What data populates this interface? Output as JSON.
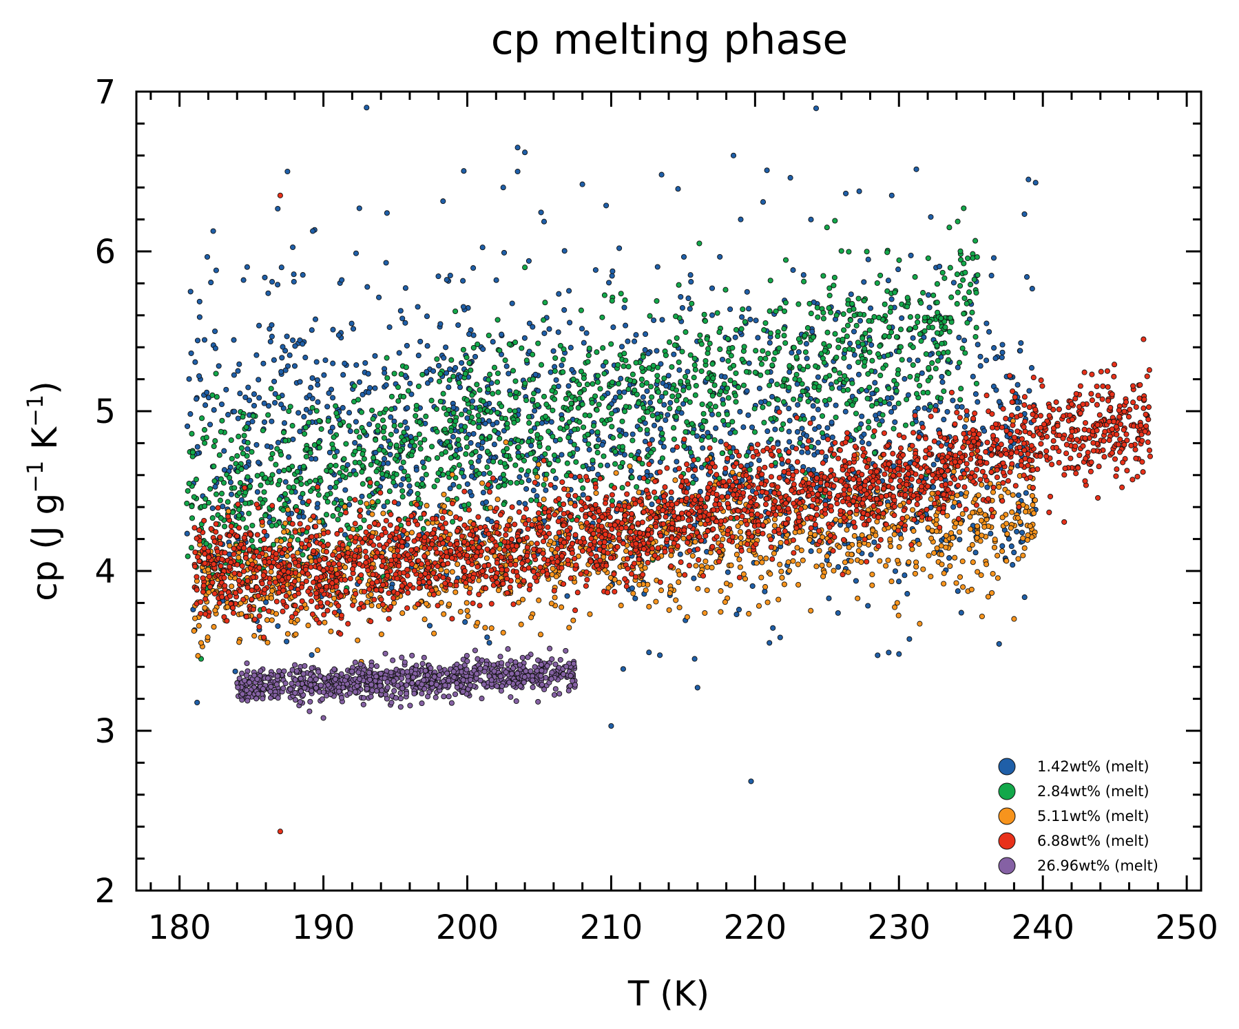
{
  "chart_data": {
    "type": "scatter",
    "title": "cp melting phase",
    "xlabel": "T (K)",
    "ylabel": {
      "base": "cp (J g",
      "sup1": "−1",
      "mid": " K",
      "sup2": "−1",
      "end": ")"
    },
    "xlim": [
      177,
      251
    ],
    "ylim": [
      2,
      7
    ],
    "xticks": [
      180,
      190,
      200,
      210,
      220,
      230,
      240,
      250
    ],
    "yticks": [
      2,
      3,
      4,
      5,
      6,
      7
    ],
    "grid": false,
    "legend_position": "lower-right",
    "series": [
      {
        "name": "1.42wt% (melt)",
        "color": "#1f5fa8",
        "x_range": [
          180.5,
          239.5
        ],
        "trend": [
          [
            180.5,
            4.85
          ],
          [
            190,
            4.85
          ],
          [
            200,
            4.9
          ],
          [
            210,
            4.85
          ],
          [
            220,
            4.8
          ],
          [
            230,
            4.85
          ],
          [
            239.5,
            4.85
          ]
        ],
        "spread": 0.55,
        "count": 1500,
        "outliers": [
          [
            193.0,
            6.9
          ],
          [
            187.5,
            6.5
          ],
          [
            192.5,
            6.27
          ],
          [
            203.5,
            6.65
          ],
          [
            204.0,
            6.62
          ],
          [
            203.5,
            6.5
          ],
          [
            202.5,
            6.4
          ],
          [
            208.0,
            6.42
          ],
          [
            213.5,
            6.48
          ],
          [
            218.5,
            6.6
          ],
          [
            219.0,
            6.2
          ],
          [
            229.5,
            6.35
          ],
          [
            239.0,
            6.45
          ],
          [
            239.5,
            6.43
          ],
          [
            210.0,
            3.03
          ],
          [
            216.0,
            3.27
          ],
          [
            215.8,
            3.45
          ],
          [
            230.0,
            3.48
          ],
          [
            221.0,
            3.55
          ]
        ]
      },
      {
        "name": "2.84wt% (melt)",
        "color": "#13a84a",
        "x_range": [
          180.5,
          235.5
        ],
        "trend": [
          [
            180.5,
            4.4
          ],
          [
            190,
            4.6
          ],
          [
            200,
            4.85
          ],
          [
            210,
            5.0
          ],
          [
            220,
            5.2
          ],
          [
            230,
            5.45
          ],
          [
            235.5,
            5.65
          ]
        ],
        "spread": 0.28,
        "count": 1500,
        "outliers": [
          [
            225.0,
            6.15
          ],
          [
            233.5,
            6.15
          ],
          [
            234.5,
            6.27
          ],
          [
            181.5,
            3.45
          ],
          [
            204.0,
            5.9
          ]
        ]
      },
      {
        "name": "5.11wt% (melt)",
        "color": "#f7941d",
        "x_range": [
          181,
          239.5
        ],
        "trend": [
          [
            181,
            3.9
          ],
          [
            190,
            4.0
          ],
          [
            200,
            4.05
          ],
          [
            210,
            4.1
          ],
          [
            220,
            4.2
          ],
          [
            230,
            4.3
          ],
          [
            239.5,
            4.3
          ]
        ],
        "spread": 0.2,
        "count": 1200,
        "outliers": [
          [
            181.5,
            3.55
          ],
          [
            238.0,
            3.7
          ]
        ]
      },
      {
        "name": "6.88wt% (melt)",
        "color": "#e8311a",
        "x_range": [
          181,
          247.5
        ],
        "trend": [
          [
            181,
            4.0
          ],
          [
            190,
            4.0
          ],
          [
            200,
            4.1
          ],
          [
            210,
            4.25
          ],
          [
            220,
            4.45
          ],
          [
            230,
            4.55
          ],
          [
            240,
            4.85
          ],
          [
            247.5,
            4.9
          ]
        ],
        "spread": 0.16,
        "count": 2600,
        "outliers": [
          [
            187.0,
            6.35
          ],
          [
            187.0,
            2.37
          ],
          [
            247.0,
            5.45
          ]
        ]
      },
      {
        "name": "26.96wt% (melt)",
        "color": "#8561a4",
        "x_range": [
          184,
          207.5
        ],
        "trend": [
          [
            184,
            3.27
          ],
          [
            190,
            3.3
          ],
          [
            200,
            3.33
          ],
          [
            207.5,
            3.37
          ]
        ],
        "spread": 0.055,
        "count": 900,
        "outliers": [
          [
            190.0,
            3.08
          ]
        ]
      }
    ]
  }
}
